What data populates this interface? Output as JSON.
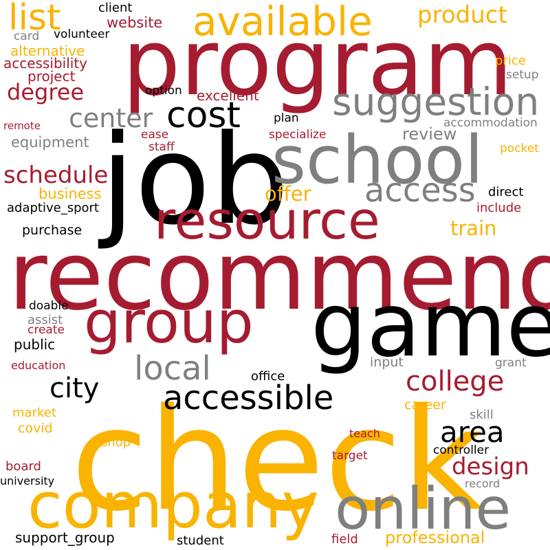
{
  "palette": {
    "red": "#a51c30",
    "gold": "#f9b300",
    "gray": "#7f7f7f",
    "black": "#000000",
    "background": "#ffffff"
  },
  "words": [
    {
      "text": "check",
      "color": "gold"
    },
    {
      "text": "recommend",
      "color": "red"
    },
    {
      "text": "job",
      "color": "black"
    },
    {
      "text": "program",
      "color": "red"
    },
    {
      "text": "game",
      "color": "black"
    },
    {
      "text": "school",
      "color": "gray"
    },
    {
      "text": "company",
      "color": "gold"
    },
    {
      "text": "group",
      "color": "red"
    },
    {
      "text": "resource",
      "color": "red"
    },
    {
      "text": "online",
      "color": "gray"
    },
    {
      "text": "available",
      "color": "gold"
    },
    {
      "text": "suggestion",
      "color": "gray"
    },
    {
      "text": "accessible",
      "color": "black"
    },
    {
      "text": "access",
      "color": "gray"
    },
    {
      "text": "cost",
      "color": "black"
    },
    {
      "text": "list",
      "color": "gold"
    },
    {
      "text": "local",
      "color": "gray"
    },
    {
      "text": "area",
      "color": "black"
    },
    {
      "text": "college",
      "color": "red"
    },
    {
      "text": "center",
      "color": "gray"
    },
    {
      "text": "city",
      "color": "black"
    },
    {
      "text": "product",
      "color": "gold"
    },
    {
      "text": "schedule",
      "color": "red"
    },
    {
      "text": "design",
      "color": "red"
    },
    {
      "text": "degree",
      "color": "red"
    },
    {
      "text": "offer",
      "color": "gold"
    },
    {
      "text": "train",
      "color": "gold"
    },
    {
      "text": "professional",
      "color": "gold"
    },
    {
      "text": "review",
      "color": "gray"
    },
    {
      "text": "website",
      "color": "red"
    },
    {
      "text": "alternative",
      "color": "gold"
    },
    {
      "text": "accessibility",
      "color": "red"
    },
    {
      "text": "project",
      "color": "red"
    },
    {
      "text": "excellent",
      "color": "red"
    },
    {
      "text": "equipment",
      "color": "gray"
    },
    {
      "text": "business",
      "color": "gold"
    },
    {
      "text": "adaptive_sport",
      "color": "black"
    },
    {
      "text": "purchase",
      "color": "black"
    },
    {
      "text": "support_group",
      "color": "black"
    },
    {
      "text": "accommodation",
      "color": "gray"
    },
    {
      "text": "client",
      "color": "black"
    },
    {
      "text": "volunteer",
      "color": "black"
    },
    {
      "text": "card",
      "color": "gray"
    },
    {
      "text": "price",
      "color": "gold"
    },
    {
      "text": "setup",
      "color": "gray"
    },
    {
      "text": "option",
      "color": "black"
    },
    {
      "text": "plan",
      "color": "black"
    },
    {
      "text": "remote",
      "color": "red"
    },
    {
      "text": "ease",
      "color": "red"
    },
    {
      "text": "specialize",
      "color": "red"
    },
    {
      "text": "staff",
      "color": "red"
    },
    {
      "text": "pocket",
      "color": "gold"
    },
    {
      "text": "direct",
      "color": "black"
    },
    {
      "text": "include",
      "color": "red"
    },
    {
      "text": "doable",
      "color": "black"
    },
    {
      "text": "assist",
      "color": "gray"
    },
    {
      "text": "create",
      "color": "red"
    },
    {
      "text": "public",
      "color": "black"
    },
    {
      "text": "education",
      "color": "red"
    },
    {
      "text": "input",
      "color": "gray"
    },
    {
      "text": "grant",
      "color": "gray"
    },
    {
      "text": "office",
      "color": "black"
    },
    {
      "text": "market",
      "color": "gold"
    },
    {
      "text": "covid",
      "color": "gold"
    },
    {
      "text": "career",
      "color": "gold"
    },
    {
      "text": "skill",
      "color": "gray"
    },
    {
      "text": "shop",
      "color": "gold"
    },
    {
      "text": "teach",
      "color": "red"
    },
    {
      "text": "controller",
      "color": "black"
    },
    {
      "text": "board",
      "color": "red"
    },
    {
      "text": "target",
      "color": "red"
    },
    {
      "text": "university",
      "color": "black"
    },
    {
      "text": "record",
      "color": "gray"
    },
    {
      "text": "student",
      "color": "black"
    },
    {
      "text": "field",
      "color": "red"
    }
  ]
}
